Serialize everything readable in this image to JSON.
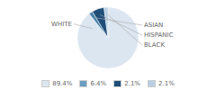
{
  "chart_data": {
    "type": "pie",
    "categories": [
      "WHITE",
      "ASIAN",
      "HISPANIC",
      "BLACK"
    ],
    "values": [
      89.4,
      2.1,
      6.4,
      2.1
    ],
    "colors": [
      "#dce6f1",
      "#4a86a8",
      "#1f4e79",
      "#b8cfe4"
    ],
    "legend": "bottom",
    "legend_entries": [
      {
        "name": "89.4%",
        "color": "#dce6f1"
      },
      {
        "name": "6.4%",
        "color": "#6a9ec0"
      },
      {
        "name": "2.1%",
        "color": "#1f4e79"
      },
      {
        "name": "2.1%",
        "color": "#b8cfe4"
      }
    ]
  }
}
